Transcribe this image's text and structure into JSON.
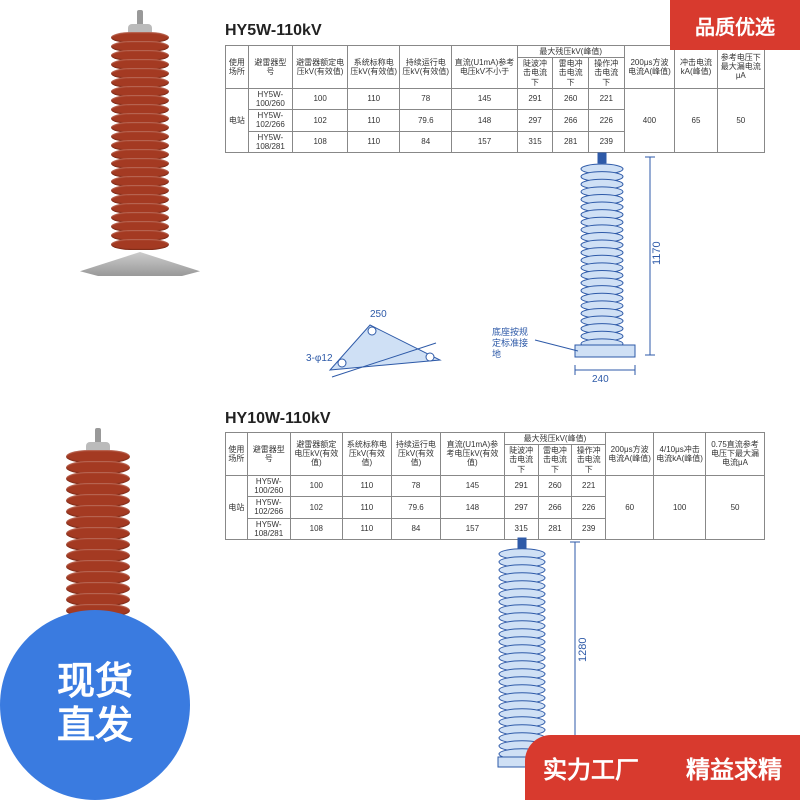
{
  "badges": {
    "top_right": "品质优选",
    "bottom_left_line1": "现货",
    "bottom_left_line2": "直发",
    "bottom_right_left": "实力工厂",
    "bottom_right_right": "精益求精"
  },
  "colors": {
    "badge_red": "#d83a2e",
    "badge_blue": "#3a7be0",
    "arrester_red": "#a43a22",
    "drawing_blue": "#2e5aa8",
    "table_border": "#888888",
    "text_dark": "#222222"
  },
  "section1": {
    "title": "HY5W-110kV",
    "arrester": {
      "sheds": 24,
      "shed_width": 58,
      "shed_height": 11,
      "has_base": true
    },
    "table": {
      "headers_row1": [
        "使用场所",
        "避雷器型号",
        "避雷器额定电压kV(有效值)",
        "系统标称电压kV(有效值)",
        "持续运行电压kV(有效值)",
        "直流(U1mA)参考电压kV不小于",
        "最大残压kV(峰值)",
        "",
        "",
        "200μs方波电流A(峰值)",
        "冲击电流kA(峰值)",
        "参考电压下最大漏电流μA"
      ],
      "headers_row2": [
        "",
        "",
        "",
        "",
        "",
        "",
        "陡波冲击电流下",
        "雷电冲击电流下",
        "操作冲击电流下",
        "",
        "",
        ""
      ],
      "rows": [
        [
          "电站",
          "HY5W-100/260",
          "100",
          "110",
          "78",
          "145",
          "291",
          "260",
          "221",
          "",
          "",
          ""
        ],
        [
          "",
          "HY5W-102/266",
          "102",
          "110",
          "79.6",
          "148",
          "297",
          "266",
          "226",
          "400",
          "65",
          "50"
        ],
        [
          "",
          "HY5W-108/281",
          "108",
          "110",
          "84",
          "157",
          "315",
          "281",
          "239",
          "",
          "",
          ""
        ]
      ]
    },
    "drawing": {
      "height_label": "1170",
      "base_width": "240",
      "bolt_circle": "250",
      "hole": "φ12",
      "note": "底座按规定标准接地"
    }
  },
  "section2": {
    "title": "HY10W-110kV",
    "arrester": {
      "sheds": 22,
      "shed_width": 64,
      "shed_height": 13,
      "has_base": false
    },
    "table": {
      "headers_row1": [
        "使用场所",
        "避雷器型号",
        "避雷器额定电压kV(有效值)",
        "系统标称电压kV(有效值)",
        "持续运行电压kV(有效值)",
        "直流(U1mA)参考电压kV(有效值)",
        "最大残压kV(峰值)",
        "",
        "",
        "200μs方波电流A(峰值)",
        "4/10μs冲击电流kA(峰值)",
        "0.75直流参考电压下最大漏电流μA"
      ],
      "headers_row2": [
        "",
        "",
        "",
        "",
        "",
        "",
        "陡波冲击电流下",
        "雷电冲击电流下",
        "操作冲击电流下",
        "",
        "",
        ""
      ],
      "rows": [
        [
          "电站",
          "HY5W-100/260",
          "100",
          "110",
          "78",
          "145",
          "291",
          "260",
          "221",
          "",
          "",
          ""
        ],
        [
          "",
          "HY5W-102/266",
          "102",
          "110",
          "79.6",
          "148",
          "297",
          "266",
          "226",
          "60",
          "100",
          "50"
        ],
        [
          "",
          "HY5W-108/281",
          "108",
          "110",
          "84",
          "157",
          "315",
          "281",
          "239",
          "",
          "",
          ""
        ]
      ]
    },
    "drawing": {
      "height_label": "1280"
    }
  }
}
